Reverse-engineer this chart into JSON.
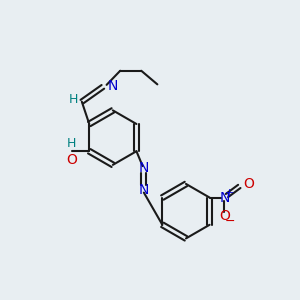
{
  "bg_color": "#e8eef2",
  "bond_color": "#1a1a1a",
  "atom_colors": {
    "N": "#0000cc",
    "O": "#cc0000",
    "teal": "#008080"
  },
  "figsize": [
    3.0,
    3.0
  ],
  "dpi": 100,
  "lw": 1.5,
  "fs": 10
}
